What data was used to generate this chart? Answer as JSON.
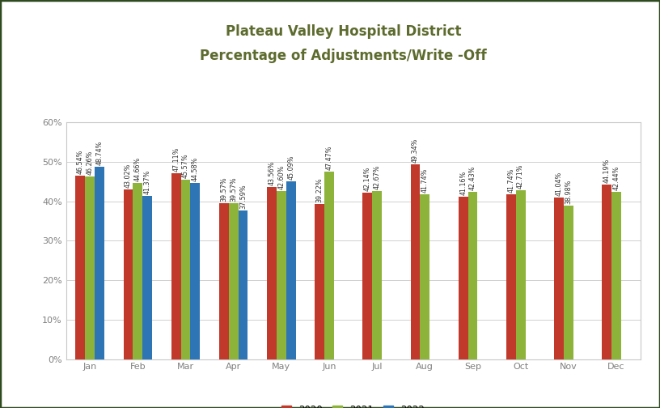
{
  "title_line1": "Plateau Valley Hospital District",
  "title_line2": "Percentage of Adjustments/Write -Off",
  "months": [
    "Jan",
    "Feb",
    "Mar",
    "Apr",
    "May",
    "Jun",
    "Jul",
    "Aug",
    "Sep",
    "Oct",
    "Nov",
    "Dec"
  ],
  "series": {
    "2020": [
      46.54,
      43.02,
      47.11,
      39.57,
      43.56,
      39.22,
      42.14,
      49.34,
      41.16,
      41.74,
      41.04,
      44.19
    ],
    "2021": [
      46.26,
      44.66,
      45.57,
      39.57,
      42.6,
      47.47,
      42.67,
      41.74,
      42.43,
      42.71,
      38.98,
      42.44
    ],
    "2022": [
      48.74,
      41.37,
      44.58,
      37.59,
      45.09,
      null,
      null,
      null,
      null,
      null,
      null,
      null
    ]
  },
  "labels": {
    "2020": [
      "46.54%",
      "43.02%",
      "47.11%",
      "39.57%",
      "43.56%",
      "39.22%",
      "42.14%",
      "49.34%",
      "41.16%",
      "41.74%",
      "41.04%",
      "44.19%"
    ],
    "2021": [
      "46.26%",
      "44.66%",
      "45.57%",
      "39.57%",
      "42.60%",
      "47.47%",
      "42.67%",
      "41.74%",
      "42.43%",
      "42.71%",
      "38.98%",
      "42.44%"
    ],
    "2022": [
      "48.74%",
      "41.37%",
      "44.58%",
      "37.59%",
      "45.09%",
      null,
      null,
      null,
      null,
      null,
      null,
      null
    ]
  },
  "colors": {
    "2020": "#C0392B",
    "2021": "#8DB33A",
    "2022": "#2E75B6"
  },
  "ylim": [
    0,
    60
  ],
  "yticks": [
    0,
    10,
    20,
    30,
    40,
    50,
    60
  ],
  "ytick_labels": [
    "0%",
    "10%",
    "20%",
    "30%",
    "40%",
    "50%",
    "60%"
  ],
  "bar_width": 0.2,
  "title_color": "#5D6B2E",
  "axis_label_color": "#808080",
  "background_color": "#FFFFFF",
  "plot_bg_color": "#FFFFFF",
  "grid_color": "#D0D0D0",
  "label_fontsize": 5.8,
  "title_fontsize": 12,
  "tick_fontsize": 8,
  "outer_border_color": "#2E4A1E",
  "inner_border_color": "#C8C8C8"
}
